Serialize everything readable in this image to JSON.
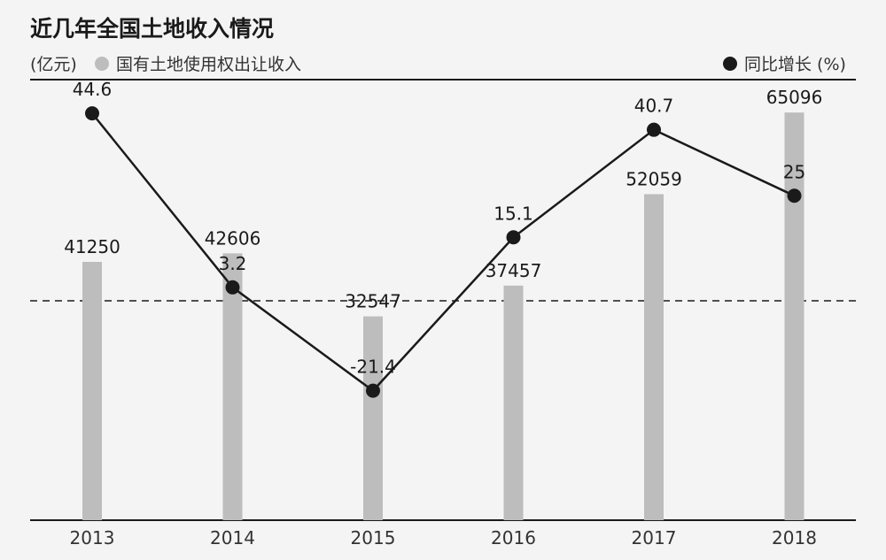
{
  "chart_data": {
    "type": "bar",
    "title": "近几年全国土地收入情况",
    "unit": "(亿元)",
    "categories": [
      "2013",
      "2014",
      "2015",
      "2016",
      "2017",
      "2018"
    ],
    "series": [
      {
        "name": "国有土地使用权出让收入",
        "type": "bar",
        "axis": "left",
        "color": "#bdbdbd",
        "values": [
          41250,
          42606,
          32547,
          37457,
          52059,
          65096
        ]
      },
      {
        "name": "同比增长 (%)",
        "type": "line",
        "axis": "right",
        "color": "#1a1a1a",
        "values": [
          44.6,
          3.2,
          -21.4,
          15.1,
          40.7,
          25
        ]
      }
    ],
    "labels_bar": [
      "41250",
      "42606",
      "32547",
      "37457",
      "52059",
      "65096"
    ],
    "labels_line": [
      "44.6",
      "3.2",
      "-21.4",
      "15.1",
      "40.7",
      "25"
    ],
    "ylim_bar": [
      0,
      76000
    ],
    "ylim_line": [
      -60,
      60
    ],
    "grid": false,
    "reference_line": "dashed at 0% growth",
    "legend_placement": "top"
  }
}
